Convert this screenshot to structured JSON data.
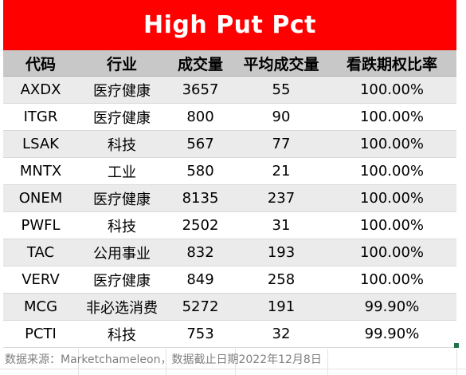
{
  "title": "High Put Pct",
  "columns": [
    "代码",
    "行业",
    "成交量",
    "平均成交量",
    "看跌期权比率"
  ],
  "rows": [
    {
      "ticker": "AXDX",
      "sector": "医疗健康",
      "volume": "3657",
      "avg_volume": "55",
      "put_ratio": "100.00%"
    },
    {
      "ticker": "ITGR",
      "sector": "医疗健康",
      "volume": "800",
      "avg_volume": "90",
      "put_ratio": "100.00%"
    },
    {
      "ticker": "LSAK",
      "sector": "科技",
      "volume": "567",
      "avg_volume": "77",
      "put_ratio": "100.00%"
    },
    {
      "ticker": "MNTX",
      "sector": "工业",
      "volume": "580",
      "avg_volume": "21",
      "put_ratio": "100.00%"
    },
    {
      "ticker": "ONEM",
      "sector": "医疗健康",
      "volume": "8135",
      "avg_volume": "237",
      "put_ratio": "100.00%"
    },
    {
      "ticker": "PWFL",
      "sector": "科技",
      "volume": "2502",
      "avg_volume": "31",
      "put_ratio": "100.00%"
    },
    {
      "ticker": "TAC",
      "sector": "公用事业",
      "volume": "832",
      "avg_volume": "193",
      "put_ratio": "100.00%"
    },
    {
      "ticker": "VERV",
      "sector": "医疗健康",
      "volume": "849",
      "avg_volume": "258",
      "put_ratio": "100.00%"
    },
    {
      "ticker": "MCG",
      "sector": "非必选消费",
      "volume": "5272",
      "avg_volume": "191",
      "put_ratio": "99.90%"
    },
    {
      "ticker": "PCTI",
      "sector": "科技",
      "volume": "753",
      "avg_volume": "32",
      "put_ratio": "99.90%"
    }
  ],
  "footnote": "数据来源：Marketchameleon，数据截止日期2022年12月8日",
  "colors": {
    "title_bg": "#ff0000",
    "header_bg": "#c8c8c8",
    "stripe_bg": "#ebebeb",
    "selection_handle": "#217346"
  }
}
